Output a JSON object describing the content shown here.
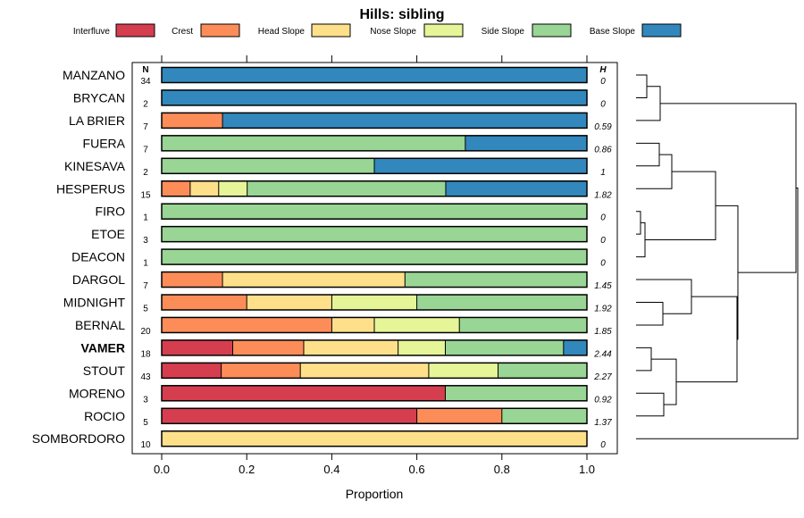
{
  "chart_data": {
    "type": "bar",
    "stacked": true,
    "orientation": "horizontal",
    "title": "Hills: sibling",
    "xlabel": "Proportion",
    "xlim": [
      0,
      1
    ],
    "xticks": [
      "0.0",
      "0.2",
      "0.4",
      "0.6",
      "0.8",
      "1.0"
    ],
    "n_header": "N",
    "h_header": "H",
    "legend": [
      {
        "name": "Interfluve",
        "color": "#d53e4f"
      },
      {
        "name": "Crest",
        "color": "#fc8d59"
      },
      {
        "name": "Head Slope",
        "color": "#fee08b"
      },
      {
        "name": "Nose Slope",
        "color": "#e6f598"
      },
      {
        "name": "Side Slope",
        "color": "#99d594"
      },
      {
        "name": "Base Slope",
        "color": "#3288bd"
      }
    ],
    "rows": [
      {
        "label": "MANZANO",
        "n": "34",
        "h": "0",
        "values": [
          0,
          0,
          0,
          0,
          0,
          1
        ]
      },
      {
        "label": "BRYCAN",
        "n": "2",
        "h": "0",
        "values": [
          0,
          0,
          0,
          0,
          0,
          1
        ]
      },
      {
        "label": "LA BRIER",
        "n": "7",
        "h": "0.59",
        "values": [
          0,
          0.143,
          0,
          0,
          0,
          0.857
        ]
      },
      {
        "label": "FUERA",
        "n": "7",
        "h": "0.86",
        "values": [
          0,
          0,
          0,
          0,
          0.714,
          0.286
        ]
      },
      {
        "label": "KINESAVA",
        "n": "2",
        "h": "1",
        "values": [
          0,
          0,
          0,
          0,
          0.5,
          0.5
        ]
      },
      {
        "label": "HESPERUS",
        "n": "15",
        "h": "1.82",
        "values": [
          0,
          0.067,
          0.067,
          0.067,
          0.467,
          0.333
        ]
      },
      {
        "label": "FIRO",
        "n": "1",
        "h": "0",
        "values": [
          0,
          0,
          0,
          0,
          1,
          0
        ]
      },
      {
        "label": "ETOE",
        "n": "3",
        "h": "0",
        "values": [
          0,
          0,
          0,
          0,
          1,
          0
        ]
      },
      {
        "label": "DEACON",
        "n": "1",
        "h": "0",
        "values": [
          0,
          0,
          0,
          0,
          1,
          0
        ]
      },
      {
        "label": "DARGOL",
        "n": "7",
        "h": "1.45",
        "values": [
          0,
          0.143,
          0.429,
          0,
          0.429,
          0
        ]
      },
      {
        "label": "MIDNIGHT",
        "n": "5",
        "h": "1.92",
        "values": [
          0,
          0.2,
          0.2,
          0.2,
          0.4,
          0
        ]
      },
      {
        "label": "BERNAL",
        "n": "20",
        "h": "1.85",
        "values": [
          0,
          0.4,
          0.1,
          0.2,
          0.3,
          0
        ]
      },
      {
        "label": "VAMER",
        "n": "18",
        "h": "2.44",
        "values": [
          0.167,
          0.167,
          0.222,
          0.111,
          0.278,
          0.056
        ],
        "bold": true
      },
      {
        "label": "STOUT",
        "n": "43",
        "h": "2.27",
        "values": [
          0.14,
          0.186,
          0.302,
          0.163,
          0.209,
          0
        ]
      },
      {
        "label": "MORENO",
        "n": "3",
        "h": "0.92",
        "values": [
          0.667,
          0,
          0,
          0,
          0.333,
          0
        ]
      },
      {
        "label": "ROCIO",
        "n": "5",
        "h": "1.37",
        "values": [
          0.6,
          0.2,
          0,
          0,
          0.2,
          0
        ]
      },
      {
        "label": "SOMBORDORO",
        "n": "10",
        "h": "0",
        "values": [
          0,
          0,
          1,
          0,
          0,
          0
        ]
      }
    ]
  }
}
